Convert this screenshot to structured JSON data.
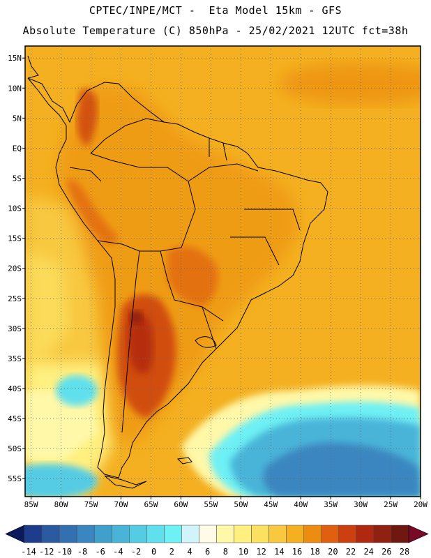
{
  "header": {
    "title_line1": "CPTEC/INPE/MCT -  Eta Model 15km - GFS",
    "title_line2": "Absolute Temperature (C) 850hPa - 25/02/2021 12UTC fct=38h"
  },
  "map": {
    "lat_range": [
      -58,
      17
    ],
    "lon_range": [
      -86,
      -20
    ],
    "lat_labels": [
      "15N",
      "10N",
      "5N",
      "EQ",
      "5S",
      "10S",
      "15S",
      "20S",
      "25S",
      "30S",
      "35S",
      "40S",
      "45S",
      "50S",
      "55S"
    ],
    "lat_values": [
      15,
      10,
      5,
      0,
      -5,
      -10,
      -15,
      -20,
      -25,
      -30,
      -35,
      -40,
      -45,
      -50,
      -55
    ],
    "lon_labels": [
      "85W",
      "80W",
      "75W",
      "70W",
      "65W",
      "60W",
      "55W",
      "50W",
      "45W",
      "40W",
      "35W",
      "30W",
      "25W",
      "20W"
    ],
    "lon_values": [
      -85,
      -80,
      -75,
      -70,
      -65,
      -60,
      -55,
      -50,
      -45,
      -40,
      -35,
      -30,
      -25,
      -20
    ]
  },
  "colorbar": {
    "labels": [
      "-14",
      "-12",
      "-10",
      "-8",
      "-6",
      "-4",
      "-2",
      "0",
      "2",
      "4",
      "6",
      "8",
      "10",
      "12",
      "14",
      "16",
      "18",
      "20",
      "22",
      "24",
      "26",
      "28"
    ],
    "colors": [
      "#1e3c8c",
      "#2a5aa0",
      "#3270b0",
      "#3a86c0",
      "#40a0cc",
      "#48b4d8",
      "#54cce4",
      "#60e0ec",
      "#6ef0f4",
      "#d0f4fa",
      "#fffbe6",
      "#fff8a8",
      "#fff080",
      "#fce060",
      "#f8c840",
      "#f4b020",
      "#ec8c10",
      "#e06010",
      "#cc4010",
      "#b02810",
      "#902010",
      "#701810"
    ],
    "under_color": "#0a1a5a",
    "over_color": "#780a28"
  }
}
